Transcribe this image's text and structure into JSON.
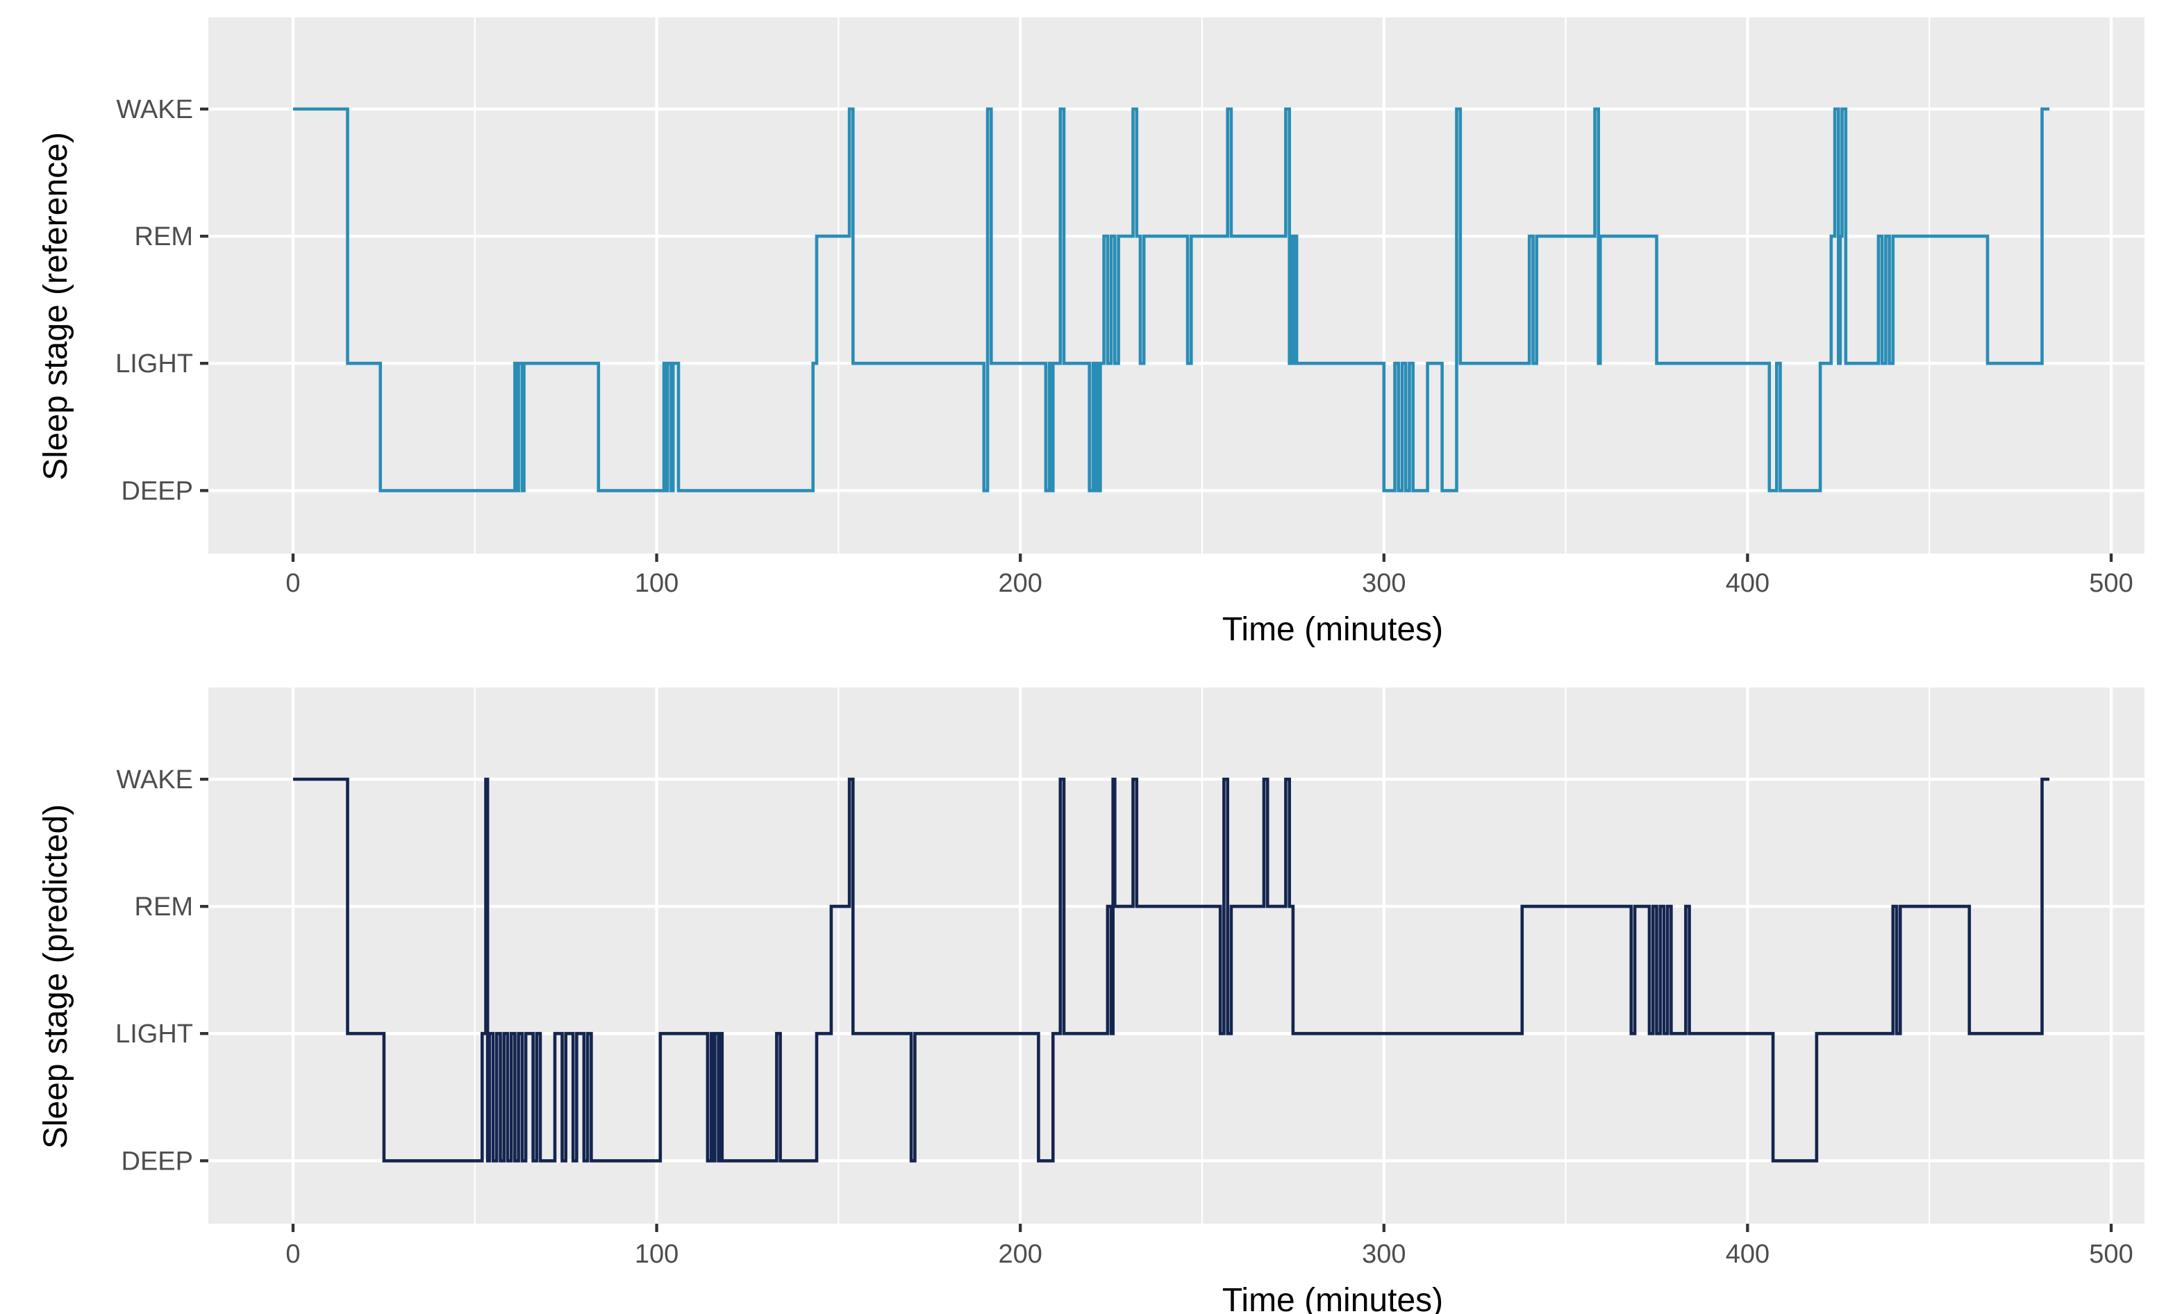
{
  "chart_data": [
    {
      "type": "line",
      "name": "reference",
      "xlabel": "Time (minutes)",
      "ylabel": "Sleep stage (reference)",
      "xlim": [
        0,
        500
      ],
      "x_ticks": [
        0,
        100,
        200,
        300,
        400,
        500
      ],
      "y_categories": [
        "DEEP",
        "LIGHT",
        "REM",
        "WAKE"
      ],
      "grid": true,
      "color": "#2a8db5",
      "series": [
        {
          "name": "reference",
          "steps": [
            [
              0,
              "WAKE"
            ],
            [
              15,
              "LIGHT"
            ],
            [
              24,
              "DEEP"
            ],
            [
              61,
              "LIGHT"
            ],
            [
              61.5,
              "DEEP"
            ],
            [
              62,
              "LIGHT"
            ],
            [
              63,
              "DEEP"
            ],
            [
              63.5,
              "LIGHT"
            ],
            [
              84,
              "DEEP"
            ],
            [
              102,
              "LIGHT"
            ],
            [
              102.5,
              "DEEP"
            ],
            [
              103,
              "LIGHT"
            ],
            [
              104,
              "DEEP"
            ],
            [
              104.5,
              "LIGHT"
            ],
            [
              106,
              "DEEP"
            ],
            [
              143,
              "LIGHT"
            ],
            [
              144,
              "REM"
            ],
            [
              153,
              "WAKE"
            ],
            [
              154,
              "LIGHT"
            ],
            [
              190,
              "DEEP"
            ],
            [
              191,
              "WAKE"
            ],
            [
              192,
              "LIGHT"
            ],
            [
              207,
              "DEEP"
            ],
            [
              208,
              "LIGHT"
            ],
            [
              208.5,
              "DEEP"
            ],
            [
              209,
              "LIGHT"
            ],
            [
              211,
              "WAKE"
            ],
            [
              212,
              "LIGHT"
            ],
            [
              219,
              "DEEP"
            ],
            [
              220,
              "LIGHT"
            ],
            [
              220.5,
              "DEEP"
            ],
            [
              221,
              "LIGHT"
            ],
            [
              221.5,
              "DEEP"
            ],
            [
              222,
              "LIGHT"
            ],
            [
              223,
              "REM"
            ],
            [
              224,
              "LIGHT"
            ],
            [
              225,
              "REM"
            ],
            [
              226,
              "LIGHT"
            ],
            [
              227,
              "REM"
            ],
            [
              231,
              "WAKE"
            ],
            [
              232,
              "REM"
            ],
            [
              233,
              "LIGHT"
            ],
            [
              234,
              "REM"
            ],
            [
              246,
              "LIGHT"
            ],
            [
              247,
              "REM"
            ],
            [
              257,
              "WAKE"
            ],
            [
              258,
              "REM"
            ],
            [
              273,
              "WAKE"
            ],
            [
              274,
              "LIGHT"
            ],
            [
              274.5,
              "REM"
            ],
            [
              275,
              "LIGHT"
            ],
            [
              275.5,
              "REM"
            ],
            [
              276,
              "LIGHT"
            ],
            [
              300,
              "DEEP"
            ],
            [
              303,
              "LIGHT"
            ],
            [
              304,
              "DEEP"
            ],
            [
              305,
              "LIGHT"
            ],
            [
              306,
              "DEEP"
            ],
            [
              307,
              "LIGHT"
            ],
            [
              308,
              "DEEP"
            ],
            [
              312,
              "LIGHT"
            ],
            [
              316,
              "DEEP"
            ],
            [
              320,
              "WAKE"
            ],
            [
              321,
              "LIGHT"
            ],
            [
              340,
              "REM"
            ],
            [
              341,
              "LIGHT"
            ],
            [
              342,
              "REM"
            ],
            [
              358,
              "WAKE"
            ],
            [
              359,
              "LIGHT"
            ],
            [
              359.5,
              "REM"
            ],
            [
              375,
              "LIGHT"
            ],
            [
              406,
              "DEEP"
            ],
            [
              408,
              "LIGHT"
            ],
            [
              409,
              "DEEP"
            ],
            [
              420,
              "LIGHT"
            ],
            [
              423,
              "REM"
            ],
            [
              424,
              "WAKE"
            ],
            [
              425,
              "LIGHT"
            ],
            [
              425.5,
              "REM"
            ],
            [
              426,
              "WAKE"
            ],
            [
              427,
              "LIGHT"
            ],
            [
              436,
              "REM"
            ],
            [
              437,
              "LIGHT"
            ],
            [
              438,
              "REM"
            ],
            [
              439,
              "LIGHT"
            ],
            [
              440,
              "REM"
            ],
            [
              466,
              "LIGHT"
            ],
            [
              481,
              "WAKE"
            ],
            [
              483,
              "WAKE"
            ]
          ]
        }
      ]
    },
    {
      "type": "line",
      "name": "predicted",
      "xlabel": "Time (minutes)",
      "ylabel": "Sleep stage (predicted)",
      "xlim": [
        0,
        500
      ],
      "x_ticks": [
        0,
        100,
        200,
        300,
        400,
        500
      ],
      "y_categories": [
        "DEEP",
        "LIGHT",
        "REM",
        "WAKE"
      ],
      "grid": true,
      "color": "#14254f",
      "series": [
        {
          "name": "predicted",
          "steps": [
            [
              0,
              "WAKE"
            ],
            [
              15,
              "LIGHT"
            ],
            [
              25,
              "DEEP"
            ],
            [
              52,
              "LIGHT"
            ],
            [
              53,
              "WAKE"
            ],
            [
              53.5,
              "DEEP"
            ],
            [
              54,
              "LIGHT"
            ],
            [
              55,
              "DEEP"
            ],
            [
              56,
              "LIGHT"
            ],
            [
              57,
              "DEEP"
            ],
            [
              58,
              "LIGHT"
            ],
            [
              59,
              "DEEP"
            ],
            [
              60,
              "LIGHT"
            ],
            [
              61,
              "DEEP"
            ],
            [
              62,
              "LIGHT"
            ],
            [
              63,
              "DEEP"
            ],
            [
              64,
              "LIGHT"
            ],
            [
              66,
              "DEEP"
            ],
            [
              67,
              "LIGHT"
            ],
            [
              68,
              "DEEP"
            ],
            [
              72,
              "LIGHT"
            ],
            [
              74,
              "DEEP"
            ],
            [
              75,
              "LIGHT"
            ],
            [
              77,
              "DEEP"
            ],
            [
              78,
              "LIGHT"
            ],
            [
              80,
              "DEEP"
            ],
            [
              81,
              "LIGHT"
            ],
            [
              82,
              "DEEP"
            ],
            [
              101,
              "LIGHT"
            ],
            [
              114,
              "DEEP"
            ],
            [
              115,
              "LIGHT"
            ],
            [
              115.5,
              "DEEP"
            ],
            [
              116,
              "LIGHT"
            ],
            [
              117,
              "DEEP"
            ],
            [
              117.5,
              "LIGHT"
            ],
            [
              118,
              "DEEP"
            ],
            [
              133,
              "LIGHT"
            ],
            [
              134,
              "DEEP"
            ],
            [
              144,
              "LIGHT"
            ],
            [
              148,
              "REM"
            ],
            [
              153,
              "WAKE"
            ],
            [
              154,
              "LIGHT"
            ],
            [
              170,
              "DEEP"
            ],
            [
              171,
              "LIGHT"
            ],
            [
              205,
              "DEEP"
            ],
            [
              209,
              "LIGHT"
            ],
            [
              211,
              "WAKE"
            ],
            [
              212,
              "LIGHT"
            ],
            [
              224,
              "REM"
            ],
            [
              225,
              "LIGHT"
            ],
            [
              225.5,
              "WAKE"
            ],
            [
              226,
              "REM"
            ],
            [
              231,
              "WAKE"
            ],
            [
              232,
              "REM"
            ],
            [
              255,
              "LIGHT"
            ],
            [
              256,
              "WAKE"
            ],
            [
              257,
              "LIGHT"
            ],
            [
              258,
              "REM"
            ],
            [
              267,
              "WAKE"
            ],
            [
              268,
              "REM"
            ],
            [
              273,
              "WAKE"
            ],
            [
              274,
              "REM"
            ],
            [
              275,
              "LIGHT"
            ],
            [
              338,
              "REM"
            ],
            [
              368,
              "LIGHT"
            ],
            [
              369,
              "REM"
            ],
            [
              373,
              "LIGHT"
            ],
            [
              374,
              "REM"
            ],
            [
              375,
              "LIGHT"
            ],
            [
              376,
              "REM"
            ],
            [
              377,
              "LIGHT"
            ],
            [
              378,
              "REM"
            ],
            [
              379,
              "LIGHT"
            ],
            [
              383,
              "REM"
            ],
            [
              384,
              "LIGHT"
            ],
            [
              407,
              "DEEP"
            ],
            [
              419,
              "LIGHT"
            ],
            [
              440,
              "REM"
            ],
            [
              441,
              "LIGHT"
            ],
            [
              442,
              "REM"
            ],
            [
              461,
              "LIGHT"
            ],
            [
              481,
              "WAKE"
            ],
            [
              483,
              "WAKE"
            ]
          ]
        }
      ]
    }
  ]
}
